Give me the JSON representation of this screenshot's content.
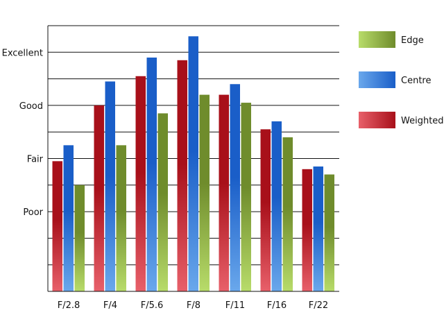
{
  "chart_data": {
    "type": "bar",
    "categories": [
      "F/2.8",
      "F/4",
      "F/5.6",
      "F/8",
      "F/11",
      "F/16",
      "F/22"
    ],
    "y_tick_labels": [
      {
        "value": 3,
        "label": "Poor"
      },
      {
        "value": 5,
        "label": "Fair"
      },
      {
        "value": 7,
        "label": "Good"
      },
      {
        "value": 9,
        "label": "Excellent"
      }
    ],
    "ylim": [
      0,
      10
    ],
    "grid": true,
    "legend_position": "right",
    "series": [
      {
        "name": "Weighted",
        "color_dark": "#a8101a",
        "color_light": "#e8606a",
        "values": [
          4.9,
          7.0,
          8.1,
          8.7,
          7.4,
          6.1,
          4.6
        ]
      },
      {
        "name": "Centre",
        "color_dark": "#1a5ec8",
        "color_light": "#6aa8ec",
        "values": [
          5.5,
          7.9,
          8.8,
          9.6,
          7.8,
          6.4,
          4.7
        ]
      },
      {
        "name": "Edge",
        "color_dark": "#6f8c2c",
        "color_light": "#b8dc6a",
        "values": [
          4.0,
          5.5,
          6.7,
          7.4,
          7.1,
          5.8,
          4.4
        ]
      }
    ],
    "legend_order": [
      "Edge",
      "Centre",
      "Weighted"
    ]
  }
}
